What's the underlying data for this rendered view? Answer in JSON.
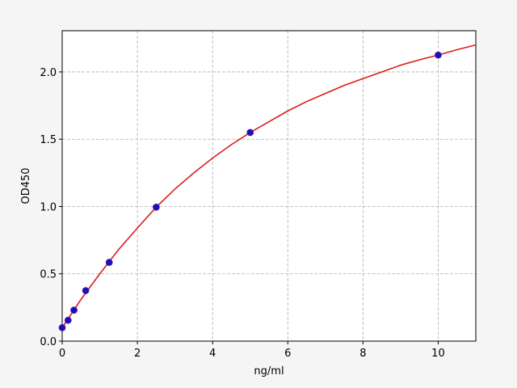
{
  "chart_data": {
    "type": "scatter",
    "xlabel": "ng/ml",
    "ylabel": "OD450",
    "xlim": [
      0,
      11
    ],
    "ylim": [
      0,
      2.306
    ],
    "xticks": [
      0,
      2,
      4,
      6,
      8,
      10
    ],
    "yticks": [
      {
        "value": 0,
        "label": "0.0"
      },
      0.5,
      {
        "value": 1,
        "label": "1.0"
      },
      1.5,
      {
        "value": 2,
        "label": "2.0"
      }
    ],
    "grid": true,
    "series": [
      {
        "type": "line",
        "color": "#dd1c1c",
        "x": [
          0,
          0.5,
          1,
          1.5,
          2,
          2.5,
          3,
          3.5,
          4,
          4.5,
          5,
          5.5,
          6,
          6.5,
          7,
          7.5,
          8,
          8.5,
          9,
          9.5,
          10,
          10.5,
          11
        ],
        "values": [
          0.1,
          0.31,
          0.5,
          0.68,
          0.84,
          0.995,
          1.13,
          1.25,
          1.36,
          1.46,
          1.55,
          1.63,
          1.71,
          1.78,
          1.84,
          1.9,
          1.95,
          2.0,
          2.05,
          2.09,
          2.125,
          2.165,
          2.2
        ]
      },
      {
        "type": "scatter",
        "color": "#1010c8",
        "x": [
          0,
          0.156,
          0.312,
          0.625,
          1.25,
          2.5,
          5,
          10
        ],
        "values": [
          0.1,
          0.155,
          0.23,
          0.375,
          0.585,
          0.995,
          1.55,
          2.125
        ]
      }
    ]
  }
}
